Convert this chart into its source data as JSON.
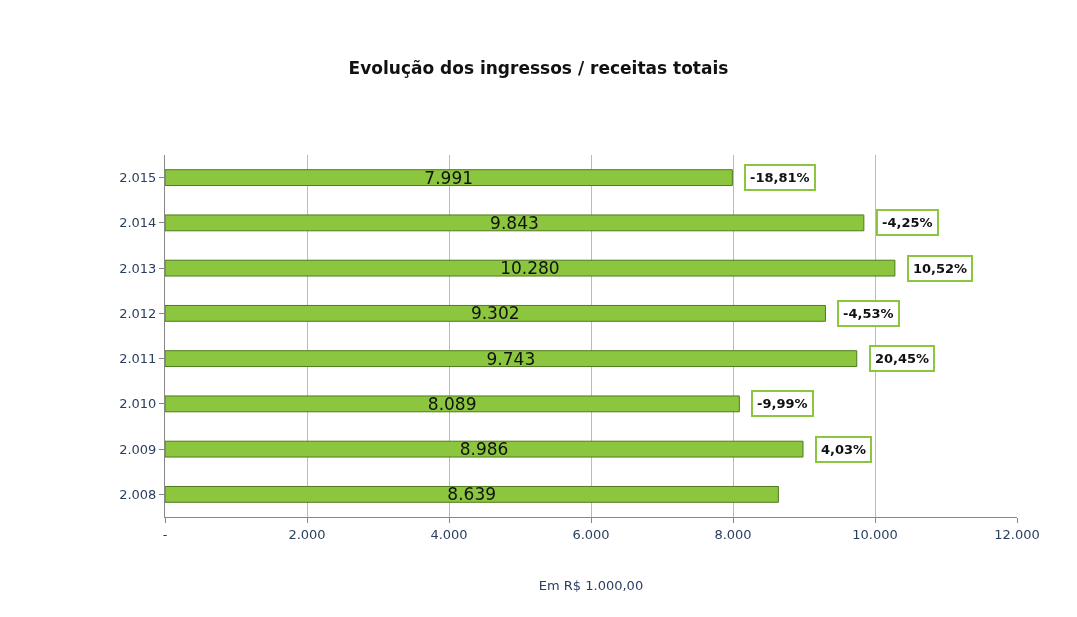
{
  "chart_data": {
    "type": "bar",
    "orientation": "horizontal",
    "title": "Evolução dos ingressos / receitas totais",
    "xlabel": "Em R$ 1.000,00",
    "categories": [
      "2.015",
      "2.014",
      "2.013",
      "2.012",
      "2.011",
      "2.010",
      "2.009",
      "2.008"
    ],
    "values": [
      7991,
      9843,
      10280,
      9302,
      9743,
      8089,
      8986,
      8639
    ],
    "value_labels": [
      "7.991",
      "9.843",
      "10.280",
      "9.302",
      "9.743",
      "8.089",
      "8.986",
      "8.639"
    ],
    "color": "#8cc63e",
    "xlim": [
      0,
      12000
    ],
    "xticks": [
      {
        "value": 0,
        "label": "-"
      },
      {
        "value": 2000,
        "label": "2.000"
      },
      {
        "value": 4000,
        "label": "4.000"
      },
      {
        "value": 6000,
        "label": "6.000"
      },
      {
        "value": 8000,
        "label": "8.000"
      },
      {
        "value": 10000,
        "label": "10.000"
      },
      {
        "value": 12000,
        "label": "12.000"
      }
    ],
    "grid": "x",
    "annotations": [
      {
        "text": "-18,81%",
        "x": 7991,
        "y": "2.015"
      },
      {
        "text": "-4,25%",
        "x": 9843,
        "y": "2.014"
      },
      {
        "text": "10,52%",
        "x": 10280,
        "y": "2.013"
      },
      {
        "text": "-4,53%",
        "x": 9302,
        "y": "2.012"
      },
      {
        "text": "20,45%",
        "x": 9743,
        "y": "2.011"
      },
      {
        "text": "-9,99%",
        "x": 8089,
        "y": "2.010"
      },
      {
        "text": "4,03%",
        "x": 8986,
        "y": "2.009"
      }
    ]
  }
}
